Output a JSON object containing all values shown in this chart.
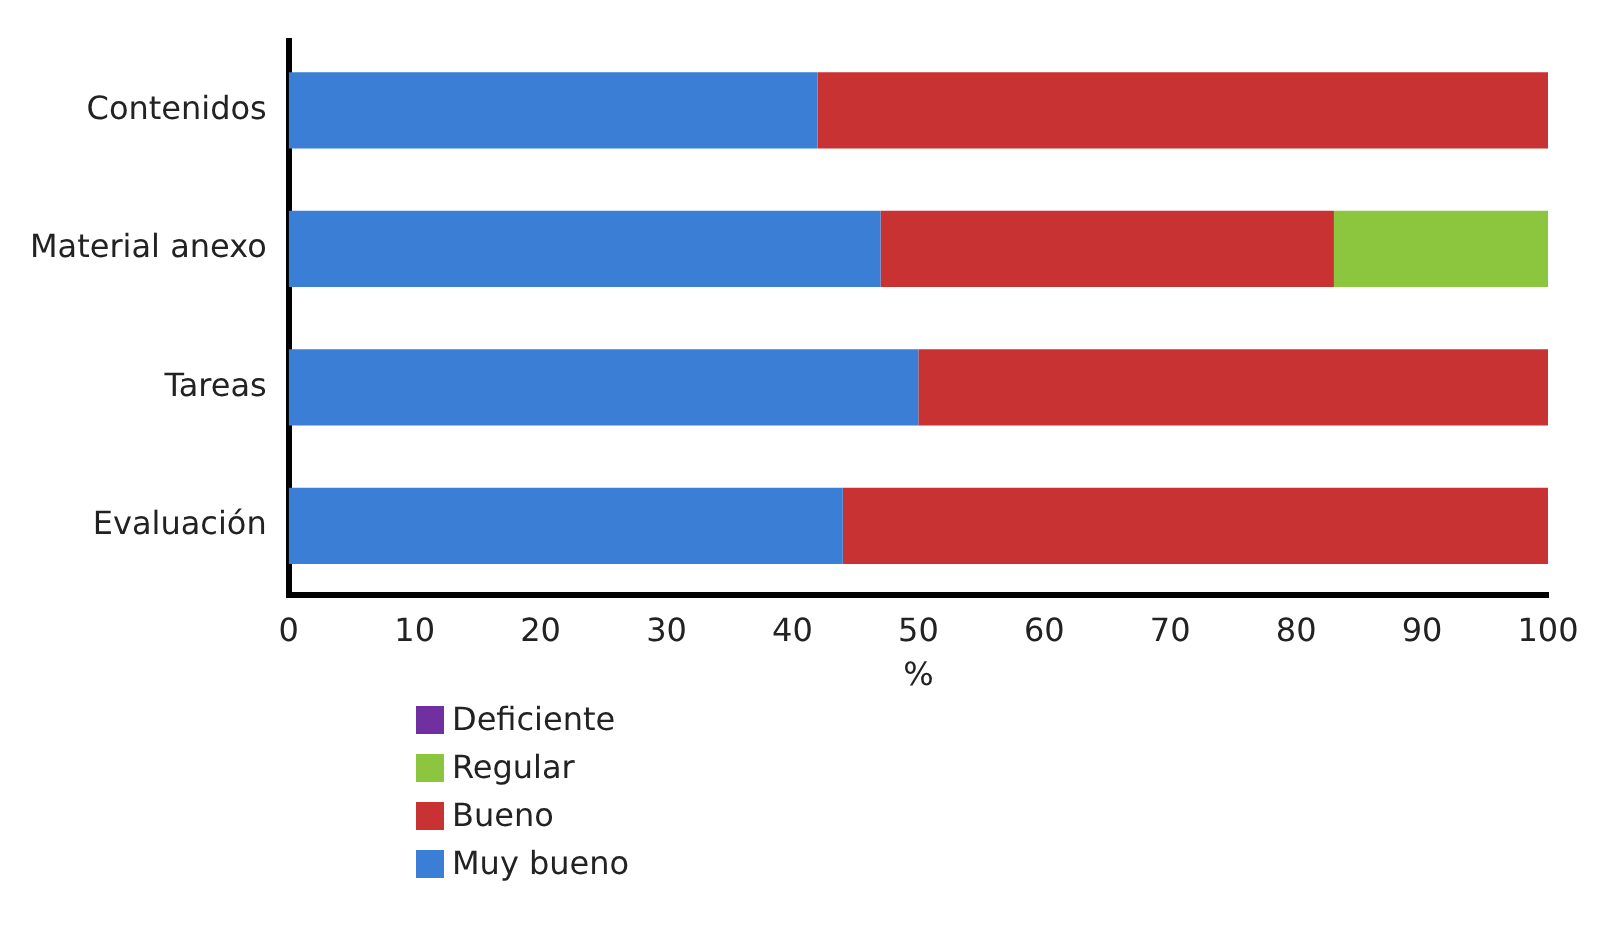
{
  "chart_data": {
    "type": "bar",
    "orientation": "horizontal",
    "stacked": true,
    "categories": [
      "Contenidos",
      "Material anexo",
      "Tareas",
      "Evaluación"
    ],
    "xlabel": "%",
    "xlim": [
      0,
      100
    ],
    "xticks": [
      0,
      10,
      20,
      30,
      40,
      50,
      60,
      70,
      80,
      90,
      100
    ],
    "grid": false,
    "legend": "bottom left",
    "series": [
      {
        "name": "Muy bueno",
        "color": "#3a7fd5",
        "values": [
          42,
          47,
          50,
          44
        ]
      },
      {
        "name": "Bueno",
        "color": "#c83232",
        "values": [
          58,
          36,
          50,
          56
        ]
      },
      {
        "name": "Regular",
        "color": "#8cc63f",
        "values": [
          0,
          17,
          0,
          0
        ]
      },
      {
        "name": "Deficiente",
        "color": "#7030a0",
        "values": [
          0,
          0,
          0,
          0
        ]
      }
    ]
  }
}
